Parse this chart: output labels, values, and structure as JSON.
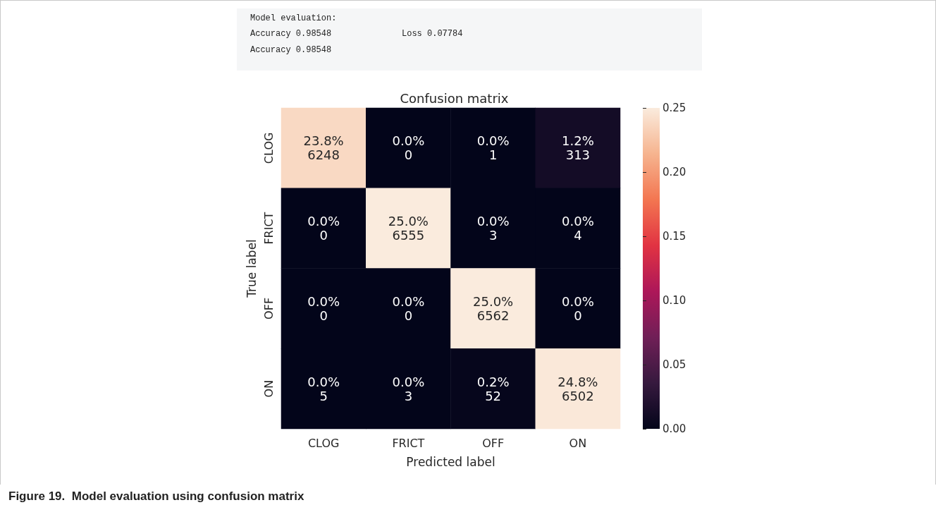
{
  "chart_data": {
    "type": "heatmap",
    "title": "Confusion matrix",
    "xlabel": "Predicted label",
    "ylabel": "True label",
    "categories": [
      "CLOG",
      "FRICT",
      "OFF",
      "ON"
    ],
    "y_categories": [
      "CLOG",
      "FRICT",
      "OFF",
      "ON"
    ],
    "cells": [
      [
        0.238,
        0.0,
        0.0,
        0.012
      ],
      [
        0.0,
        0.25,
        0.0,
        0.0
      ],
      [
        0.0,
        0.0,
        0.25,
        0.0
      ],
      [
        0.0,
        0.0,
        0.002,
        0.248
      ]
    ],
    "cell_labels": [
      [
        "23.8%\n6248",
        "0.0%\n0",
        "0.0%\n1",
        "1.2%\n313"
      ],
      [
        "0.0%\n0",
        "25.0%\n6555",
        "0.0%\n3",
        "0.0%\n4"
      ],
      [
        "0.0%\n0",
        "0.0%\n0",
        "25.0%\n6562",
        "0.0%\n0"
      ],
      [
        "0.0%\n5",
        "0.0%\n3",
        "0.2%\n52",
        "24.8%\n6502"
      ]
    ],
    "clim": [
      0,
      0.25
    ],
    "cticks": [
      {
        "value": 0,
        "label": "0.00"
      },
      {
        "value": 0.05,
        "label": "0.05"
      },
      {
        "value": 0.1,
        "label": "0.10"
      },
      {
        "value": 0.15,
        "label": "0.15"
      },
      {
        "value": 0.2,
        "label": "0.20"
      },
      {
        "value": 0.25,
        "label": "0.25"
      }
    ],
    "annotations": [
      "Model evaluation:",
      "Accuracy 0.98548",
      "Loss 0.07784",
      "Accuracy 0.98548",
      "Figure 19.  Model evaluation using confusion matrix"
    ]
  }
}
